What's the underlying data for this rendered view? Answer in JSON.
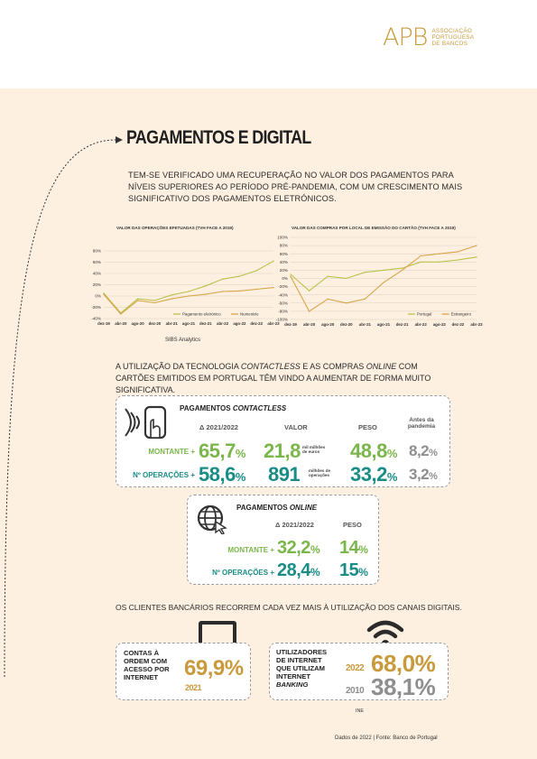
{
  "logo": {
    "mark": "APB",
    "line1": "ASSOCIAÇÃO",
    "line2": "PORTUGUESA",
    "line3": "DE BANCOS"
  },
  "title": "PAGAMENTOS E DIGITAL",
  "intro": "TEM-SE VERIFICADO UMA RECUPERAÇÃO NO VALOR DOS PAGAMENTOS PARA NÍVEIS SUPERIORES AO PERÍODO PRÉ-PANDEMIA, COM UM CRESCIMENTO MAIS SIGNIFICATIVO DOS PAGAMENTOS ELETRÓNICOS.",
  "chart_data": [
    {
      "type": "line",
      "title": "VALOR DAS OPERAÇÕES EFETUADAS (TVH FACE A 2019)",
      "x": [
        "dez-19",
        "abr-20",
        "ago-20",
        "dez-20",
        "abr-21",
        "ago-21",
        "dez-21",
        "abr-22",
        "ago-22",
        "dez-22",
        "abr-23"
      ],
      "ylim": [
        -40,
        80
      ],
      "yticks": [
        "80%",
        "60%",
        "40%",
        "20%",
        "0%",
        "-20%",
        "-40%"
      ],
      "legend": "bottom",
      "series": [
        {
          "name": "Pagamento eletrónico",
          "color": "#b8c24a",
          "values": [
            5,
            -30,
            -5,
            -8,
            2,
            8,
            18,
            30,
            35,
            45,
            62
          ]
        },
        {
          "name": "Numerário",
          "color": "#d9a44a",
          "values": [
            3,
            -32,
            -8,
            -12,
            -5,
            0,
            3,
            8,
            9,
            12,
            15
          ]
        }
      ]
    },
    {
      "type": "line",
      "title": "VALOR DAS COMPRAS POR LOCAL DE EMISSÃO DO CARTÃO (TVH FACE A 2019)",
      "x": [
        "dez-19",
        "abr-20",
        "ago-20",
        "dez-20",
        "abr-21",
        "ago-21",
        "dez-21",
        "abr-22",
        "ago-22",
        "dez-22",
        "abr-23"
      ],
      "ylim": [
        -100,
        100
      ],
      "yticks": [
        "100%",
        "80%",
        "60%",
        "40%",
        "20%",
        "0%",
        "-20%",
        "-40%",
        "-60%",
        "-80%",
        "-100%"
      ],
      "legend": "bottom",
      "series": [
        {
          "name": "Portugal",
          "color": "#b8c24a",
          "values": [
            10,
            -30,
            5,
            0,
            15,
            20,
            25,
            40,
            40,
            45,
            52
          ]
        },
        {
          "name": "Estrangeiro",
          "color": "#d9a44a",
          "values": [
            5,
            -80,
            -50,
            -60,
            -50,
            -10,
            20,
            55,
            60,
            65,
            80
          ]
        }
      ]
    }
  ],
  "source_sibs": "SIBS Analytics",
  "section2": {
    "pre": "A UTILIZAÇÃO DA TECNOLOGIA ",
    "em1": "CONTACTLESS",
    "mid": " E AS COMPRAS ",
    "em2": "ONLINE",
    "post": " COM CARTÕES EMITIDOS EM PORTUGAL TÊM VINDO A AUMENTAR DE FORMA MUITO SIGNIFICATIVA."
  },
  "contactless": {
    "title_pre": "PAGAMENTOS ",
    "title_em": "CONTACTLESS",
    "col_delta": "Δ 2021/2022",
    "col_valor": "VALOR",
    "col_peso": "PESO",
    "col_pre1": "Antes da",
    "col_pre2": "pandemia",
    "row1_label": "MONTANTE +",
    "row1_delta": "65,7",
    "row1_pct": "%",
    "row1_valor": "21,8",
    "row1_unit1": "mil milhões",
    "row1_unit2": "de euros",
    "row1_peso": "48,8",
    "row1_peso_pct": "%",
    "row1_pre": "8,2",
    "row1_pre_pct": "%",
    "row2_label": "Nº OPERAÇÕES +",
    "row2_delta": "58,6",
    "row2_pct": "%",
    "row2_valor": "891",
    "row2_unit1": "milhões de",
    "row2_unit2": "operações",
    "row2_peso": "33,2",
    "row2_peso_pct": "%",
    "row2_pre": "3,2",
    "row2_pre_pct": "%"
  },
  "online": {
    "title_pre": "PAGAMENTOS ",
    "title_em": "ONLINE",
    "col_delta": "Δ 2021/2022",
    "col_peso": "PESO",
    "row1_label": "MONTANTE +",
    "row1_delta": "32,2",
    "row1_pct": "%",
    "row1_peso": "14",
    "row1_peso_pct": "%",
    "row2_label": "Nº OPERAÇÕES +",
    "row2_delta": "28,4",
    "row2_pct": "%",
    "row2_peso": "15",
    "row2_peso_pct": "%"
  },
  "section3": "OS CLIENTES BANCÁRIOS RECORREM CADA VEZ MAIS À UTILIZAÇÃO DOS CANAIS DIGITAIS.",
  "contas": {
    "l1": "CONTAS À",
    "l2": "ORDEM COM",
    "l3": "ACESSO POR",
    "l4": "INTERNET",
    "value": "69,9%",
    "year": "2021"
  },
  "users": {
    "l1": "UTILIZADORES",
    "l2": "DE INTERNET",
    "l3": "QUE UTILIZAM",
    "l4": "INTERNET",
    "l5": "BANKING",
    "y1": "2022",
    "v1": "68,0%",
    "y2": "2010",
    "v2": "38,1%"
  },
  "ine": "INE",
  "footer": "Dados de 2022   |   Fonte: Banco de Portugal",
  "colors": {
    "green": "#7ab64a",
    "teal": "#1a8c86",
    "gold": "#c99a3b",
    "grey": "#8e8e8e",
    "bg": "#fdf0e0"
  }
}
